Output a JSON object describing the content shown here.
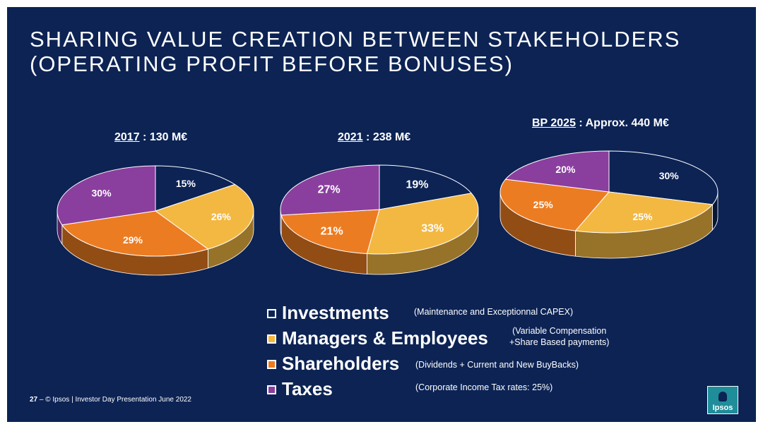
{
  "title_line1": "SHARING VALUE CREATION BETWEEN STAKEHOLDERS",
  "title_line2": "(OPERATING PROFIT BEFORE BONUSES)",
  "chart_data": [
    {
      "type": "pie",
      "year_label": "2017",
      "amount_label": " : 130 M€",
      "categories": [
        "Investments",
        "Managers & Employees",
        "Shareholders",
        "Taxes"
      ],
      "values": [
        15,
        26,
        29,
        30
      ],
      "labels": [
        "15%",
        "26%",
        "29%",
        "30%"
      ]
    },
    {
      "type": "pie",
      "year_label": "2021",
      "amount_label": " : 238 M€",
      "categories": [
        "Investments",
        "Managers & Employees",
        "Shareholders",
        "Taxes"
      ],
      "values": [
        19,
        33,
        21,
        27
      ],
      "labels": [
        "19%",
        "33%",
        "21%",
        "27%"
      ]
    },
    {
      "type": "pie",
      "year_label": "BP 2025",
      "amount_label": " : Approx. 440 M€",
      "categories": [
        "Investments",
        "Managers & Employees",
        "Shareholders",
        "Taxes"
      ],
      "values": [
        30,
        25,
        25,
        20
      ],
      "labels": [
        "30%",
        "25%",
        "25%",
        "20%"
      ]
    }
  ],
  "colors": {
    "investments": "#0c2354",
    "managers_employees": "#f3b842",
    "shareholders": "#ec7c22",
    "taxes": "#8a3f9e",
    "background": "#0c2354"
  },
  "legend": [
    {
      "label": "Investments",
      "note": "(Maintenance and Exceptionnal CAPEX)",
      "color": "#0c2354"
    },
    {
      "label": "Managers & Employees",
      "note_line1": "(Variable Compensation",
      "note_line2": "+Share Based payments)",
      "color": "#f3b842"
    },
    {
      "label": "Shareholders",
      "note": "(Dividends + Current and New BuyBacks)",
      "color": "#ec7c22"
    },
    {
      "label": "Taxes",
      "note": "(Corporate Income Tax rates: 25%)",
      "color": "#8a3f9e"
    }
  ],
  "footer": {
    "page": "27",
    "dash": " – ",
    "text": "© Ipsos | Investor Day Presentation June 2022"
  },
  "logo": {
    "text": "Ipsos"
  }
}
